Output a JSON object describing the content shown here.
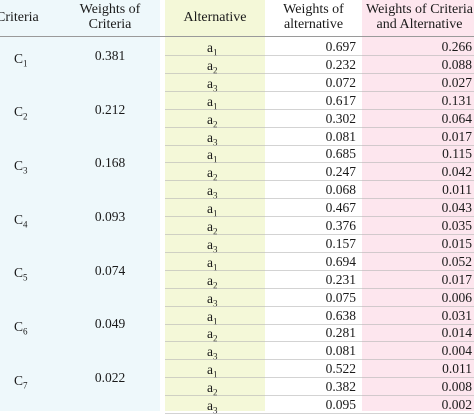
{
  "headers": {
    "criteria": "Criteria",
    "weights_of_criteria": [
      "Weights of",
      "Criteria"
    ],
    "alternative": "Alternative",
    "weights_of_alternative": [
      "Weights of",
      "alternative"
    ],
    "weights_of_criteria_and_alternative": [
      "Weights of Criteria",
      "and Alternative"
    ]
  },
  "groups": [
    {
      "criterion": "C",
      "index": "1",
      "weight": "0.381",
      "rows": [
        {
          "alt": "a",
          "sub": "1",
          "w_alt": "0.697",
          "w_ca": "0.266"
        },
        {
          "alt": "a",
          "sub": "2",
          "w_alt": "0.232",
          "w_ca": "0.088"
        },
        {
          "alt": "a",
          "sub": "3",
          "w_alt": "0.072",
          "w_ca": "0.027"
        }
      ]
    },
    {
      "criterion": "C",
      "index": "2",
      "weight": "0.212",
      "rows": [
        {
          "alt": "a",
          "sub": "1",
          "w_alt": "0.617",
          "w_ca": "0.131"
        },
        {
          "alt": "a",
          "sub": "2",
          "w_alt": "0.302",
          "w_ca": "0.064"
        },
        {
          "alt": "a",
          "sub": "3",
          "w_alt": "0.081",
          "w_ca": "0.017"
        }
      ]
    },
    {
      "criterion": "C",
      "index": "3",
      "weight": "0.168",
      "rows": [
        {
          "alt": "a",
          "sub": "1",
          "w_alt": "0.685",
          "w_ca": "0.115"
        },
        {
          "alt": "a",
          "sub": "2",
          "w_alt": "0.247",
          "w_ca": "0.042"
        },
        {
          "alt": "a",
          "sub": "3",
          "w_alt": "0.068",
          "w_ca": "0.011"
        }
      ]
    },
    {
      "criterion": "C",
      "index": "4",
      "weight": "0.093",
      "rows": [
        {
          "alt": "a",
          "sub": "1",
          "w_alt": "0.467",
          "w_ca": "0.043"
        },
        {
          "alt": "a",
          "sub": "2",
          "w_alt": "0.376",
          "w_ca": "0.035"
        },
        {
          "alt": "a",
          "sub": "3",
          "w_alt": "0.157",
          "w_ca": "0.015"
        }
      ]
    },
    {
      "criterion": "C",
      "index": "5",
      "weight": "0.074",
      "rows": [
        {
          "alt": "a",
          "sub": "1",
          "w_alt": "0.694",
          "w_ca": "0.052"
        },
        {
          "alt": "a",
          "sub": "2",
          "w_alt": "0.231",
          "w_ca": "0.017"
        },
        {
          "alt": "a",
          "sub": "3",
          "w_alt": "0.075",
          "w_ca": "0.006"
        }
      ]
    },
    {
      "criterion": "C",
      "index": "6",
      "weight": "0.049",
      "rows": [
        {
          "alt": "a",
          "sub": "1",
          "w_alt": "0.638",
          "w_ca": "0.031"
        },
        {
          "alt": "a",
          "sub": "2",
          "w_alt": "0.281",
          "w_ca": "0.014"
        },
        {
          "alt": "a",
          "sub": "3",
          "w_alt": "0.081",
          "w_ca": "0.004"
        }
      ]
    },
    {
      "criterion": "C",
      "index": "7",
      "weight": "0.022",
      "rows": [
        {
          "alt": "a",
          "sub": "1",
          "w_alt": "0.522",
          "w_ca": "0.011"
        },
        {
          "alt": "a",
          "sub": "2",
          "w_alt": "0.382",
          "w_ca": "0.008"
        },
        {
          "alt": "a",
          "sub": "3",
          "w_alt": "0.095",
          "w_ca": "0.002"
        }
      ]
    }
  ]
}
